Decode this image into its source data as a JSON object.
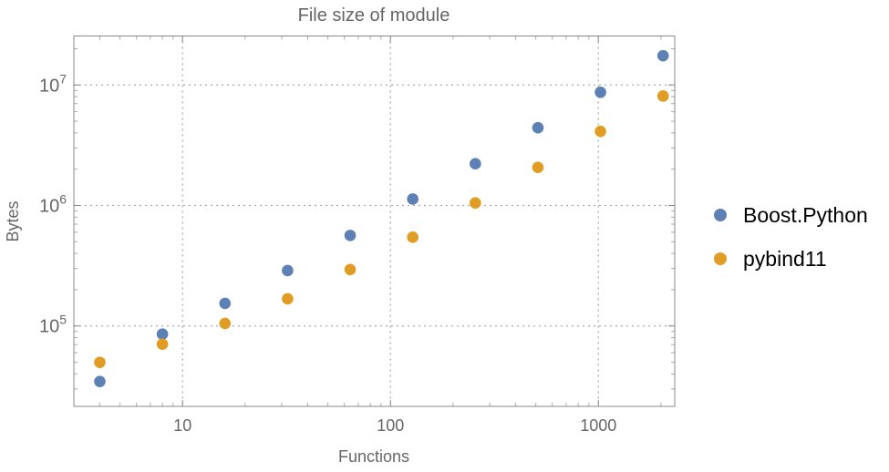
{
  "chart_data": {
    "type": "scatter",
    "title": "File size of module",
    "xlabel": "Functions",
    "ylabel": "Bytes",
    "x_scale": "log",
    "y_scale": "log",
    "xlim": [
      3,
      2330
    ],
    "ylim": [
      21500,
      25500000
    ],
    "grid": true,
    "legend_position": "right",
    "x_ticks": [
      {
        "value": 10,
        "label": "10"
      },
      {
        "value": 100,
        "label": "100"
      },
      {
        "value": 1000,
        "label": "1000"
      }
    ],
    "y_ticks": [
      {
        "value": 100000,
        "base": "10",
        "exp": "5"
      },
      {
        "value": 1000000,
        "base": "10",
        "exp": "6"
      },
      {
        "value": 10000000,
        "base": "10",
        "exp": "7"
      }
    ],
    "x": [
      4,
      8,
      16,
      32,
      64,
      128,
      256,
      512,
      1024,
      2048
    ],
    "series": [
      {
        "name": "Boost.Python",
        "color": "#5e81b5",
        "values": [
          34600,
          85500,
          154000,
          288000,
          564000,
          1130000,
          2220000,
          4420000,
          8700000,
          17500000
        ]
      },
      {
        "name": "pybind11",
        "color": "#e19c24",
        "values": [
          49900,
          70600,
          105000,
          168000,
          294000,
          545000,
          1050000,
          2070000,
          4120000,
          8100000
        ]
      }
    ]
  }
}
